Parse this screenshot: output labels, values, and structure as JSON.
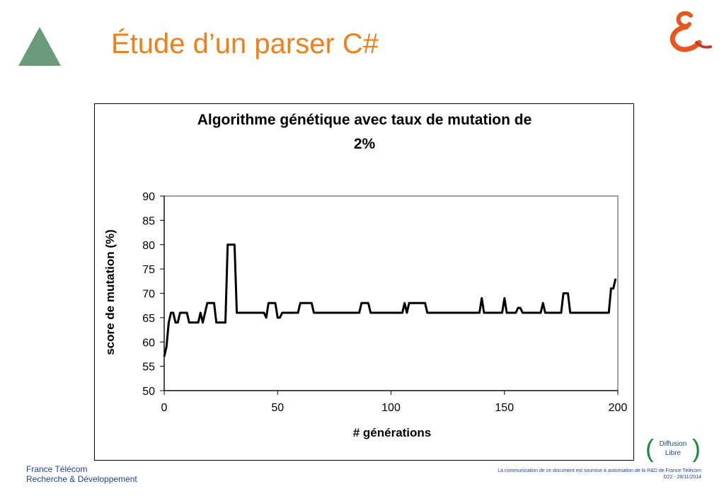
{
  "slide": {
    "title": "Étude d’un parser C#",
    "footer_left_line1": "France Télécom",
    "footer_left_line2": "Recherche & Développement",
    "footer_right_line1": "La communication de ce document est soumise à autorisation de la R&D de France Télécom",
    "footer_right_line2": "D22 - 28/11/2014",
    "badge_line1": "Diffusion",
    "badge_line2": "Libre",
    "colors": {
      "title": "#f07f1b",
      "triangle": "#6b9a7b",
      "footer": "#1f3f99",
      "badge": "#1a8a3c",
      "logo": "#e8551e"
    },
    "icons": [
      "triangle-icon",
      "france-telecom-logo-icon"
    ]
  },
  "chart_data": {
    "type": "line",
    "title": "Algorithme génétique avec taux de mutation de 2%",
    "title_line1": "Algorithme génétique avec taux de mutation de",
    "title_line2": "2%",
    "xlabel": "# générations",
    "ylabel": "score de mutation (%)",
    "xlim": [
      0,
      200
    ],
    "ylim": [
      50,
      90
    ],
    "xticks": [
      0,
      50,
      100,
      150,
      200
    ],
    "yticks": [
      50,
      55,
      60,
      65,
      70,
      75,
      80,
      85,
      90
    ],
    "grid": false,
    "legend": "none",
    "series": [
      {
        "color": "#000000",
        "points": [
          [
            0,
            57
          ],
          [
            1,
            59
          ],
          [
            2,
            64
          ],
          [
            3,
            66
          ],
          [
            4,
            66
          ],
          [
            5,
            64
          ],
          [
            6,
            64
          ],
          [
            7,
            66
          ],
          [
            8,
            66
          ],
          [
            9,
            66
          ],
          [
            10,
            66
          ],
          [
            11,
            64
          ],
          [
            12,
            64
          ],
          [
            13,
            64
          ],
          [
            14,
            64
          ],
          [
            15,
            64
          ],
          [
            16,
            66
          ],
          [
            17,
            64
          ],
          [
            18,
            66
          ],
          [
            19,
            68
          ],
          [
            20,
            68
          ],
          [
            21,
            68
          ],
          [
            22,
            68
          ],
          [
            23,
            64
          ],
          [
            24,
            64
          ],
          [
            25,
            64
          ],
          [
            26,
            64
          ],
          [
            27,
            64
          ],
          [
            28,
            80
          ],
          [
            29,
            80
          ],
          [
            30,
            80
          ],
          [
            31,
            80
          ],
          [
            32,
            66
          ],
          [
            33,
            66
          ],
          [
            34,
            66
          ],
          [
            35,
            66
          ],
          [
            36,
            66
          ],
          [
            37,
            66
          ],
          [
            38,
            66
          ],
          [
            39,
            66
          ],
          [
            40,
            66
          ],
          [
            41,
            66
          ],
          [
            42,
            66
          ],
          [
            43,
            66
          ],
          [
            44,
            66
          ],
          [
            45,
            65
          ],
          [
            46,
            68
          ],
          [
            47,
            68
          ],
          [
            48,
            68
          ],
          [
            49,
            68
          ],
          [
            50,
            65
          ],
          [
            51,
            65
          ],
          [
            52,
            66
          ],
          [
            53,
            66
          ],
          [
            54,
            66
          ],
          [
            55,
            66
          ],
          [
            56,
            66
          ],
          [
            57,
            66
          ],
          [
            58,
            66
          ],
          [
            59,
            66
          ],
          [
            60,
            68
          ],
          [
            61,
            68
          ],
          [
            62,
            68
          ],
          [
            63,
            68
          ],
          [
            64,
            68
          ],
          [
            65,
            68
          ],
          [
            66,
            66
          ],
          [
            67,
            66
          ],
          [
            68,
            66
          ],
          [
            69,
            66
          ],
          [
            70,
            66
          ],
          [
            71,
            66
          ],
          [
            72,
            66
          ],
          [
            73,
            66
          ],
          [
            74,
            66
          ],
          [
            75,
            66
          ],
          [
            76,
            66
          ],
          [
            77,
            66
          ],
          [
            78,
            66
          ],
          [
            79,
            66
          ],
          [
            80,
            66
          ],
          [
            81,
            66
          ],
          [
            82,
            66
          ],
          [
            83,
            66
          ],
          [
            84,
            66
          ],
          [
            85,
            66
          ],
          [
            86,
            66
          ],
          [
            87,
            68
          ],
          [
            88,
            68
          ],
          [
            89,
            68
          ],
          [
            90,
            68
          ],
          [
            91,
            66
          ],
          [
            92,
            66
          ],
          [
            93,
            66
          ],
          [
            94,
            66
          ],
          [
            95,
            66
          ],
          [
            96,
            66
          ],
          [
            97,
            66
          ],
          [
            98,
            66
          ],
          [
            99,
            66
          ],
          [
            100,
            66
          ],
          [
            101,
            66
          ],
          [
            102,
            66
          ],
          [
            103,
            66
          ],
          [
            104,
            66
          ],
          [
            105,
            66
          ],
          [
            106,
            68
          ],
          [
            107,
            66
          ],
          [
            108,
            68
          ],
          [
            109,
            68
          ],
          [
            110,
            68
          ],
          [
            111,
            68
          ],
          [
            112,
            68
          ],
          [
            113,
            68
          ],
          [
            114,
            68
          ],
          [
            115,
            68
          ],
          [
            116,
            66
          ],
          [
            117,
            66
          ],
          [
            118,
            66
          ],
          [
            119,
            66
          ],
          [
            120,
            66
          ],
          [
            121,
            66
          ],
          [
            122,
            66
          ],
          [
            123,
            66
          ],
          [
            124,
            66
          ],
          [
            125,
            66
          ],
          [
            126,
            66
          ],
          [
            127,
            66
          ],
          [
            128,
            66
          ],
          [
            129,
            66
          ],
          [
            130,
            66
          ],
          [
            131,
            66
          ],
          [
            132,
            66
          ],
          [
            133,
            66
          ],
          [
            134,
            66
          ],
          [
            135,
            66
          ],
          [
            136,
            66
          ],
          [
            137,
            66
          ],
          [
            138,
            66
          ],
          [
            139,
            66
          ],
          [
            140,
            69
          ],
          [
            141,
            66
          ],
          [
            142,
            66
          ],
          [
            143,
            66
          ],
          [
            144,
            66
          ],
          [
            145,
            66
          ],
          [
            146,
            66
          ],
          [
            147,
            66
          ],
          [
            148,
            66
          ],
          [
            149,
            66
          ],
          [
            150,
            69
          ],
          [
            151,
            66
          ],
          [
            152,
            66
          ],
          [
            153,
            66
          ],
          [
            154,
            66
          ],
          [
            155,
            66
          ],
          [
            156,
            67
          ],
          [
            157,
            67
          ],
          [
            158,
            66
          ],
          [
            159,
            66
          ],
          [
            160,
            66
          ],
          [
            161,
            66
          ],
          [
            162,
            66
          ],
          [
            163,
            66
          ],
          [
            164,
            66
          ],
          [
            165,
            66
          ],
          [
            166,
            66
          ],
          [
            167,
            68
          ],
          [
            168,
            66
          ],
          [
            169,
            66
          ],
          [
            170,
            66
          ],
          [
            171,
            66
          ],
          [
            172,
            66
          ],
          [
            173,
            66
          ],
          [
            174,
            66
          ],
          [
            175,
            66
          ],
          [
            176,
            70
          ],
          [
            177,
            70
          ],
          [
            178,
            70
          ],
          [
            179,
            66
          ],
          [
            180,
            66
          ],
          [
            181,
            66
          ],
          [
            182,
            66
          ],
          [
            183,
            66
          ],
          [
            184,
            66
          ],
          [
            185,
            66
          ],
          [
            186,
            66
          ],
          [
            187,
            66
          ],
          [
            188,
            66
          ],
          [
            189,
            66
          ],
          [
            190,
            66
          ],
          [
            191,
            66
          ],
          [
            192,
            66
          ],
          [
            193,
            66
          ],
          [
            194,
            66
          ],
          [
            195,
            66
          ],
          [
            196,
            66
          ],
          [
            197,
            71
          ],
          [
            198,
            71
          ],
          [
            199,
            73
          ]
        ]
      }
    ]
  }
}
